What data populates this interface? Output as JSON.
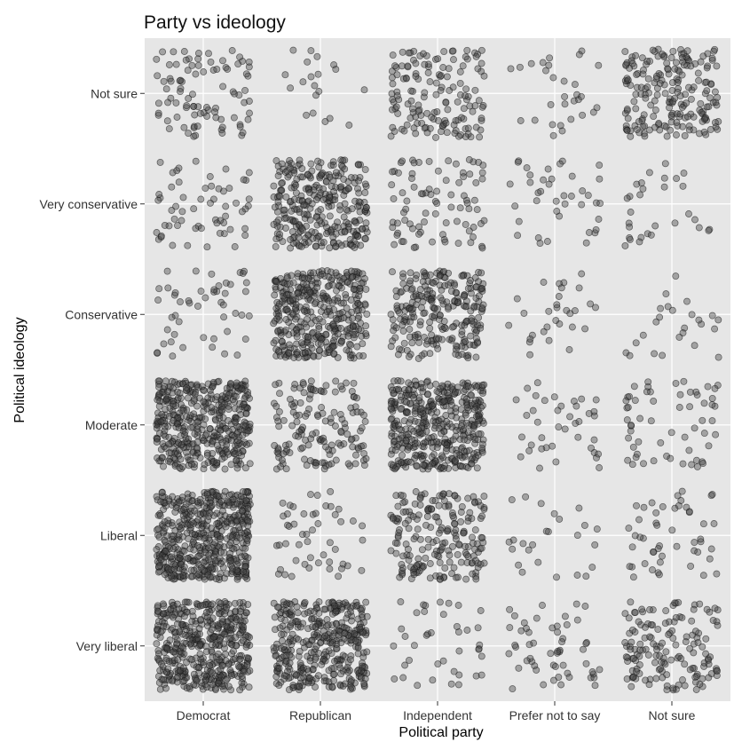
{
  "chart_data": {
    "type": "scatter",
    "subtype": "jitter",
    "title": "Party vs ideology",
    "xlabel": "Political party",
    "ylabel": "Political ideology",
    "x_categories": [
      "Democrat",
      "Republican",
      "Independent",
      "Prefer not to say",
      "Not sure"
    ],
    "y_categories": [
      "Very liberal",
      "Liberal",
      "Moderate",
      "Conservative",
      "Very conservative",
      "Not sure"
    ],
    "grid": true,
    "background": "#e6e6e6",
    "point_color": "#3c3c3c",
    "counts": [
      [
        450,
        380,
        40,
        55,
        150
      ],
      [
        500,
        50,
        200,
        25,
        50
      ],
      [
        430,
        150,
        420,
        40,
        60
      ],
      [
        50,
        380,
        250,
        30,
        25
      ],
      [
        60,
        300,
        85,
        40,
        30
      ],
      [
        90,
        20,
        150,
        30,
        200
      ]
    ]
  }
}
